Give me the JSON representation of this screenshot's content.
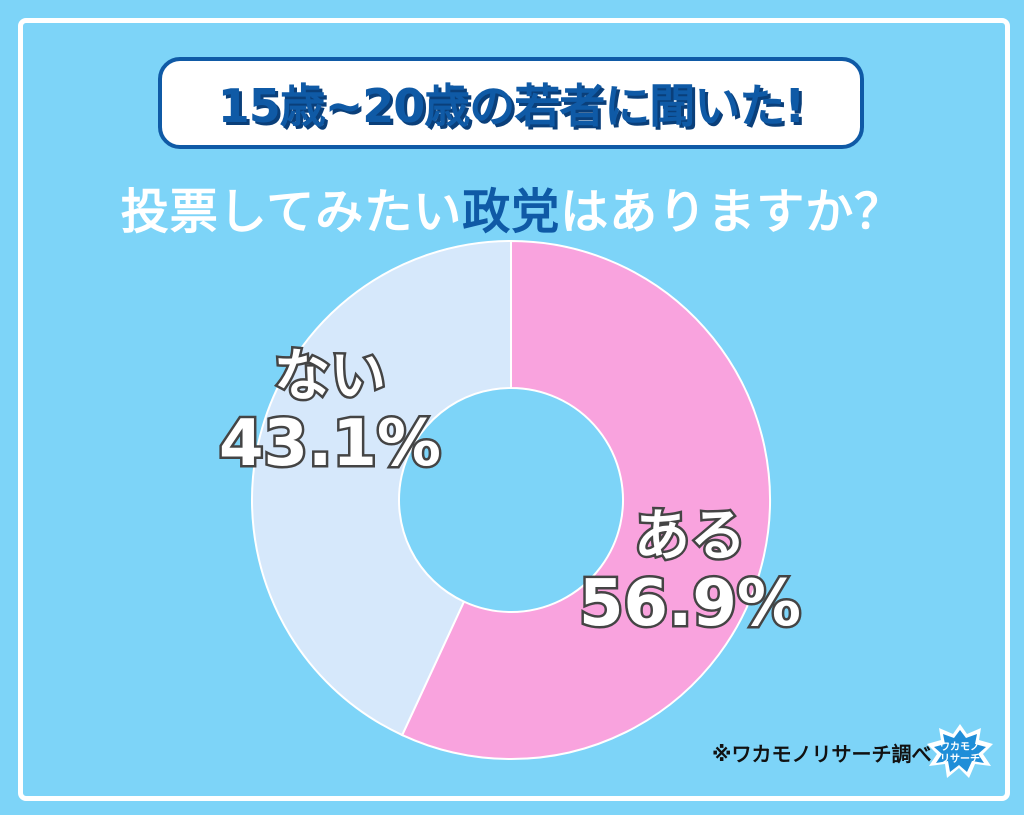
{
  "header": {
    "title": "15歳~20歳の若者に聞いた!",
    "question_pre": "投票してみたい",
    "question_highlight": "政党",
    "question_post": "はありますか？"
  },
  "chart_data": {
    "type": "pie",
    "donut": true,
    "categories": [
      "ある",
      "ない"
    ],
    "values": [
      56.9,
      43.1
    ],
    "labels": [
      "56.9%",
      "43.1%"
    ],
    "colors": [
      "#f9a3de",
      "#d6e8fb"
    ],
    "start": "top",
    "direction": "clockwise"
  },
  "footer": {
    "source": "※ワカモノリサーチ調べ",
    "logo_text": "ワカモノリサーチ"
  },
  "colors": {
    "background": "#7dd4f8",
    "accent": "#0f5aa6"
  }
}
